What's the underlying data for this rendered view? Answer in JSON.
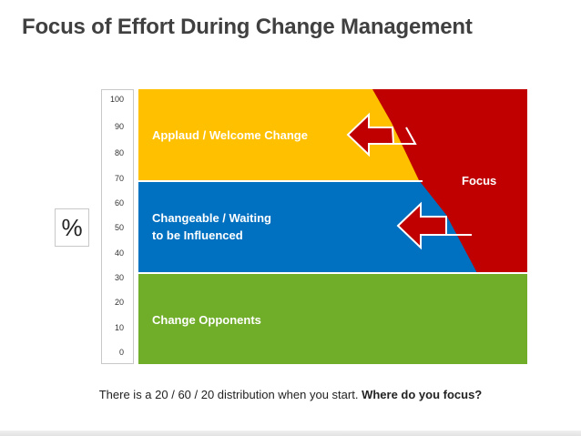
{
  "title": "Focus of Effort During Change Management",
  "percent_symbol": "%",
  "axis_ticks": [
    "100",
    "90",
    "80",
    "70",
    "60",
    "50",
    "40",
    "30",
    "20",
    "10",
    "0"
  ],
  "segments": {
    "top_label": "Applaud / Welcome Change",
    "middle_label_line1": "Changeable / Waiting",
    "middle_label_line2": "to be Influenced",
    "bottom_label": "Change Opponents",
    "focus_label": "Focus"
  },
  "colors": {
    "top": "#FFC000",
    "middle": "#0070C0",
    "bottom": "#70AD28",
    "focus": "#C00000"
  },
  "footer": {
    "text_plain": "There is a 20 / 60 / 20 distribution when you start.",
    "text_bold": "Where do you focus?"
  }
}
